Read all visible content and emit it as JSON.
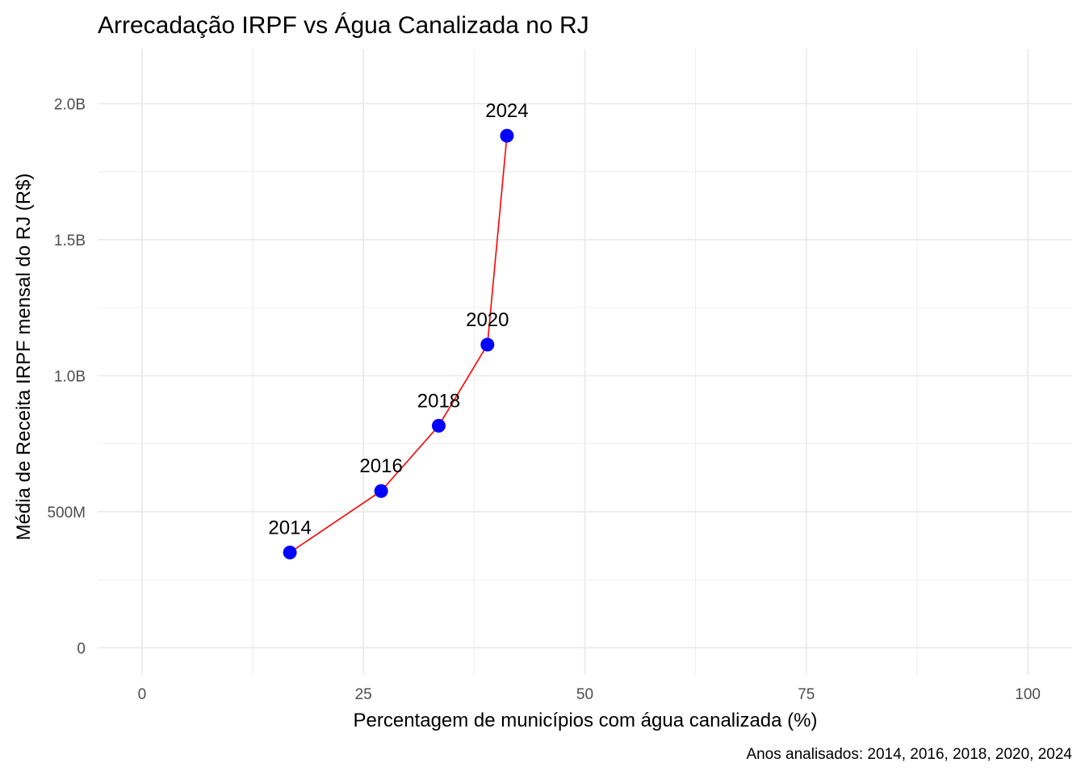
{
  "chart_data": {
    "type": "scatter",
    "title": "Arrecadação IRPF vs Água Canalizada no RJ",
    "xlabel": "Percentagem de municípios com água canalizada (%)",
    "ylabel": "Média de Receita IRPF mensal do RJ (R$)",
    "caption": "Anos analisados: 2014, 2016, 2018, 2020, 2024",
    "xlim": [
      -5,
      105
    ],
    "ylim": [
      -0.1,
      2.2
    ],
    "x_ticks": [
      0,
      25,
      50,
      75,
      100
    ],
    "x_tick_labels": [
      "0",
      "25",
      "50",
      "75",
      "100"
    ],
    "y_ticks": [
      0,
      0.5,
      1.0,
      1.5,
      2.0
    ],
    "y_tick_labels": [
      "0",
      "500M",
      "1.0B",
      "1.5B",
      "2.0B"
    ],
    "y_unit": "billions R$",
    "grid": true,
    "legend": "none",
    "connect_line": true,
    "points": [
      {
        "label": "2014",
        "x": 16.7,
        "y": 0.35
      },
      {
        "label": "2016",
        "x": 27.0,
        "y": 0.576
      },
      {
        "label": "2018",
        "x": 33.5,
        "y": 0.816
      },
      {
        "label": "2020",
        "x": 39.0,
        "y": 1.114
      },
      {
        "label": "2024",
        "x": 41.2,
        "y": 1.882
      }
    ],
    "colors": {
      "point": "#0000ff",
      "line": "#ff0000",
      "grid": "#ebebeb"
    }
  }
}
